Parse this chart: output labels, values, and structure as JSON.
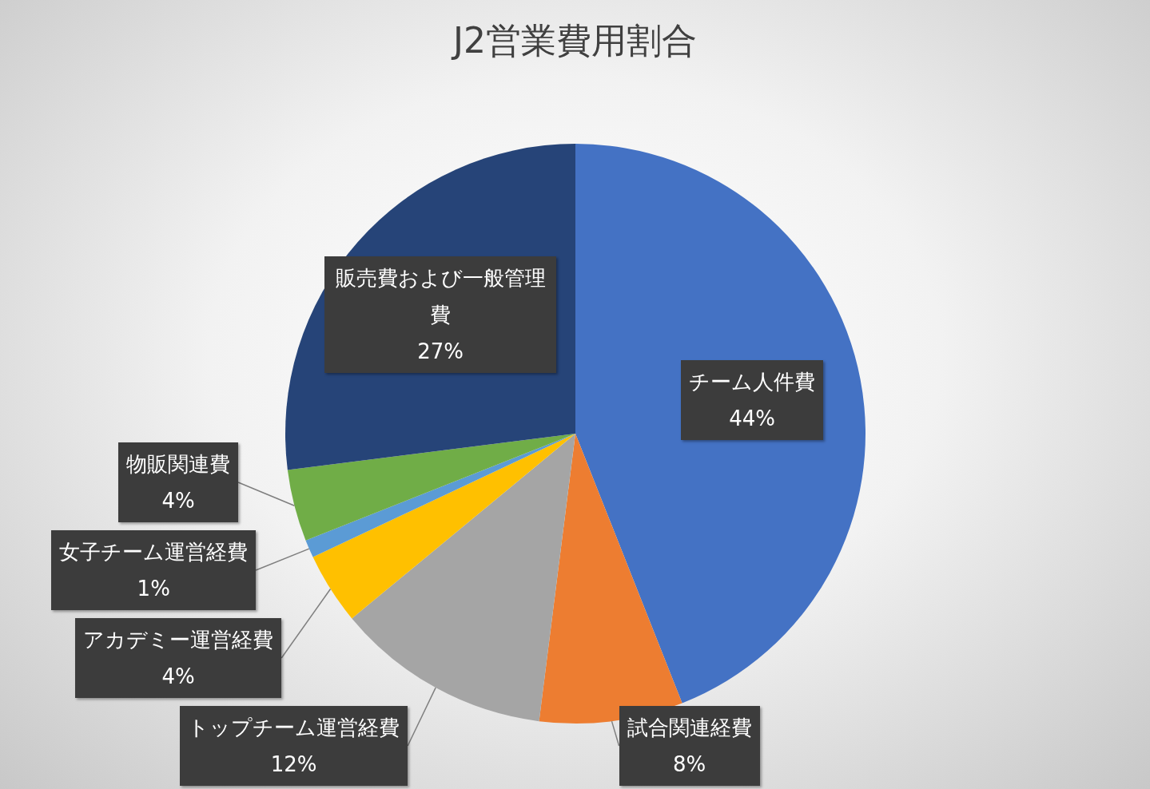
{
  "chart_data": {
    "type": "pie",
    "title": "J2営業費用割合",
    "categories": [
      "チーム人件費",
      "試合関連経費",
      "トップチーム運営経費",
      "アカデミー運営経費",
      "女子チーム運営経費",
      "物販関連費",
      "販売費および一般管理費"
    ],
    "values": [
      44,
      8,
      12,
      4,
      1,
      4,
      27
    ],
    "value_labels": [
      "44%",
      "8%",
      "12%",
      "4%",
      "1%",
      "4%",
      "27%"
    ],
    "colors": [
      "#4472c4",
      "#ed7d31",
      "#a5a5a5",
      "#ffc000",
      "#5b9bd5",
      "#70ad47",
      "#264478"
    ]
  }
}
